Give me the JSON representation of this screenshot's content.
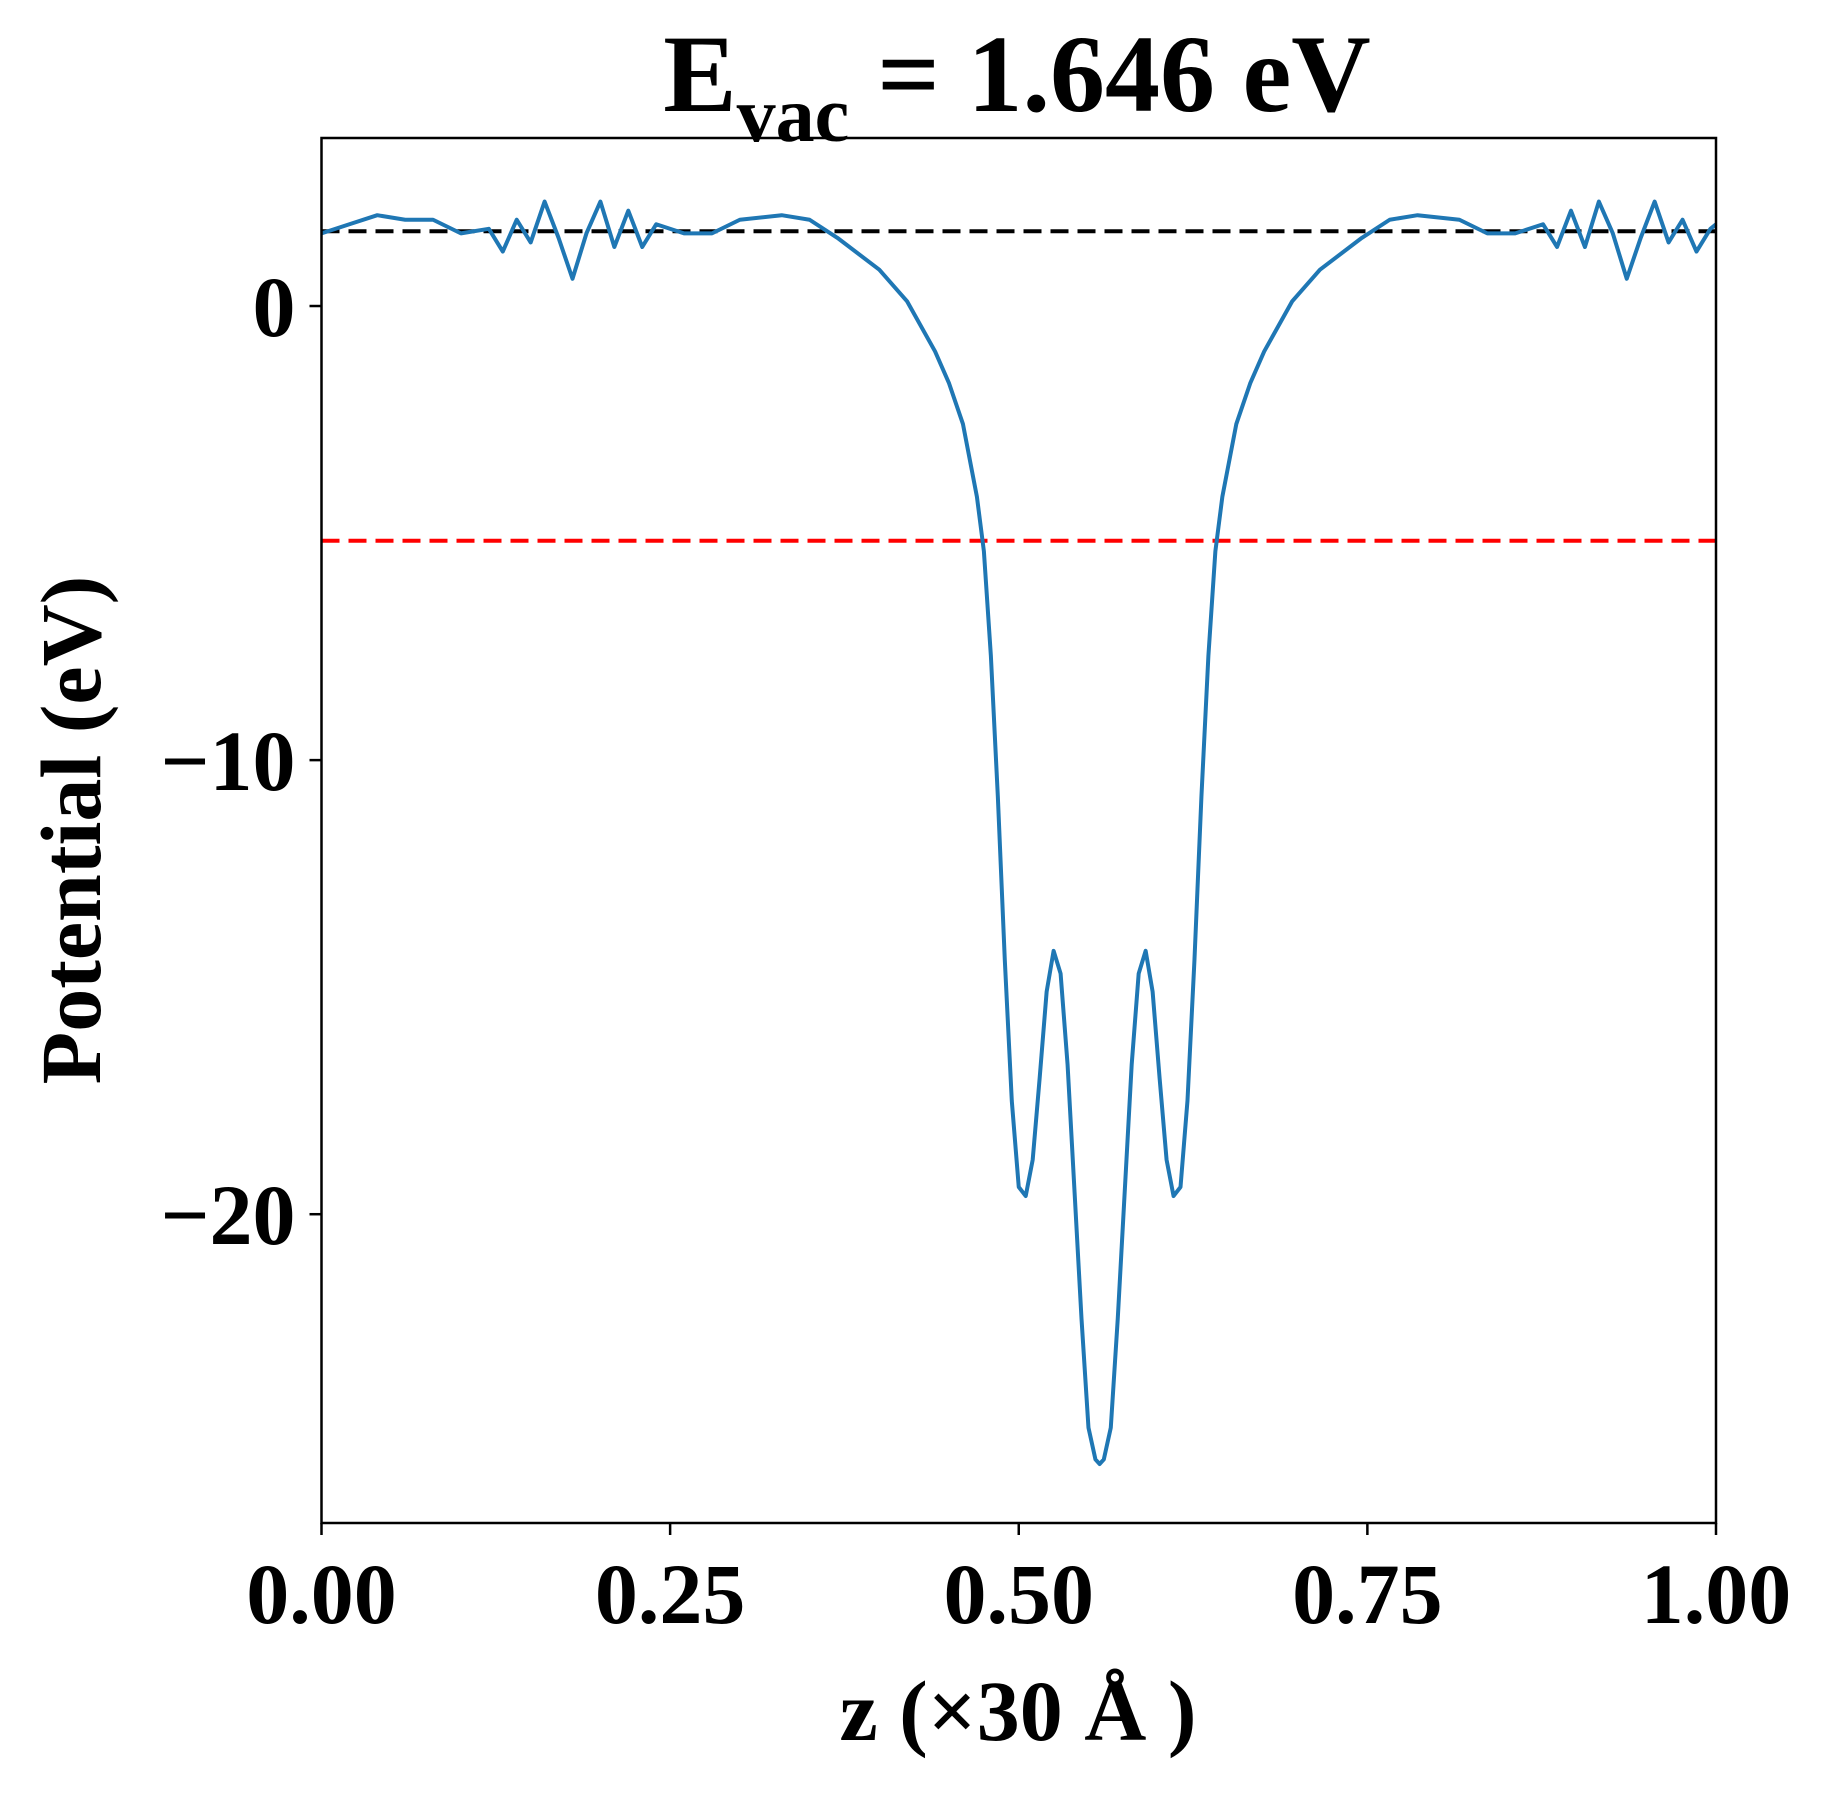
{
  "chart_data": {
    "type": "line",
    "title": {
      "main": "E",
      "sub": "vac",
      "rest": "= 1.646 eV"
    },
    "xlabel": "z (×30 Å )",
    "ylabel": "Potential (eV)",
    "xlim": [
      0,
      1
    ],
    "ylim": [
      -26.8,
      3.7
    ],
    "xticks": [
      {
        "value": 0,
        "label": "0.00"
      },
      {
        "value": 0.25,
        "label": "0.25"
      },
      {
        "value": 0.5,
        "label": "0.50"
      },
      {
        "value": 0.75,
        "label": "0.75"
      },
      {
        "value": 1,
        "label": "1.00"
      }
    ],
    "yticks": [
      0,
      {
        "value": -10,
        "label": "−10"
      },
      {
        "value": -20,
        "label": "−20"
      }
    ],
    "hlines": [
      {
        "value": 1.646,
        "color": "#000000"
      },
      {
        "value": -5.17,
        "color": "#ff0000"
      }
    ],
    "series": [
      {
        "color": "#1f77b4",
        "x": [
          0.0,
          0.02,
          0.04,
          0.06,
          0.08,
          0.1,
          0.12,
          0.13,
          0.14,
          0.15,
          0.16,
          0.17,
          0.18,
          0.19,
          0.2,
          0.21,
          0.22,
          0.23,
          0.24,
          0.26,
          0.28,
          0.3,
          0.33,
          0.35,
          0.37,
          0.4,
          0.42,
          0.44,
          0.45,
          0.46,
          0.47,
          0.475,
          0.48,
          0.485,
          0.49,
          0.495,
          0.5,
          0.505,
          0.51,
          0.515,
          0.52,
          0.525,
          0.53,
          0.535,
          0.54,
          0.545,
          0.55,
          0.555,
          0.558,
          0.561,
          0.566,
          0.571,
          0.576,
          0.581,
          0.586,
          0.591,
          0.596,
          0.601,
          0.606,
          0.611,
          0.616,
          0.621,
          0.626,
          0.631,
          0.636,
          0.641,
          0.646,
          0.656,
          0.666,
          0.676,
          0.696,
          0.716,
          0.746,
          0.766,
          0.786,
          0.816,
          0.836,
          0.856,
          0.876,
          0.886,
          0.896,
          0.906,
          0.916,
          0.926,
          0.936,
          0.946,
          0.956,
          0.966,
          0.976,
          0.986,
          0.996,
          1.0
        ],
        "values": [
          1.6,
          1.8,
          2.0,
          1.9,
          1.9,
          1.6,
          1.7,
          1.2,
          1.9,
          1.4,
          2.3,
          1.5,
          0.6,
          1.6,
          2.3,
          1.3,
          2.1,
          1.3,
          1.8,
          1.6,
          1.6,
          1.9,
          2.0,
          1.9,
          1.5,
          0.8,
          0.1,
          -1.0,
          -1.7,
          -2.6,
          -4.2,
          -5.4,
          -7.7,
          -10.8,
          -14.4,
          -17.5,
          -19.4,
          -19.6,
          -18.8,
          -17.0,
          -15.1,
          -14.2,
          -14.7,
          -16.7,
          -19.5,
          -22.3,
          -24.7,
          -25.4,
          -25.5,
          -25.4,
          -24.7,
          -22.3,
          -19.5,
          -16.7,
          -14.7,
          -14.2,
          -15.1,
          -17.0,
          -18.8,
          -19.6,
          -19.4,
          -17.5,
          -14.4,
          -10.8,
          -7.7,
          -5.4,
          -4.2,
          -2.6,
          -1.7,
          -1.0,
          0.1,
          0.8,
          1.5,
          1.9,
          2.0,
          1.9,
          1.6,
          1.6,
          1.8,
          1.3,
          2.1,
          1.3,
          2.3,
          1.6,
          0.6,
          1.5,
          2.3,
          1.4,
          1.9,
          1.2,
          1.7,
          1.8
        ]
      }
    ]
  }
}
